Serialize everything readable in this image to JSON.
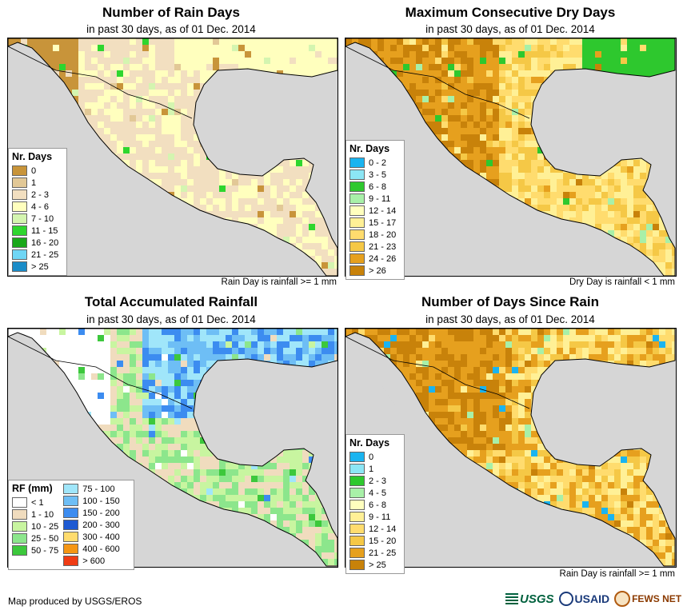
{
  "footer": {
    "credit": "Map produced by USGS/EROS"
  },
  "logos": {
    "usgs": "USGS",
    "usaid": "USAID",
    "fews": "FEWS NET"
  },
  "panels": [
    {
      "title": "Number of Rain Days",
      "subtitle": "in past 30 days, as of 01 Dec. 2014",
      "note": "Rain Day is rainfall >= 1 mm",
      "legend_title": "Nr. Days",
      "legend": [
        {
          "label": "0",
          "color": "#c8943a"
        },
        {
          "label": "1",
          "color": "#e2c896"
        },
        {
          "label": "2 - 3",
          "color": "#f2dfc0"
        },
        {
          "label": "4 - 6",
          "color": "#ffffbe"
        },
        {
          "label": "7 - 10",
          "color": "#d4f5b0"
        },
        {
          "label": "11 - 15",
          "color": "#2ed62e"
        },
        {
          "label": "16 - 20",
          "color": "#1aa81a"
        },
        {
          "label": "21 - 25",
          "color": "#6fd6f5"
        },
        {
          "label": "> 25",
          "color": "#1a8cc8"
        }
      ]
    },
    {
      "title": "Maximum Consecutive Dry Days",
      "subtitle": "in past 30 days, as of 01 Dec. 2014",
      "note": "Dry Day is rainfall < 1 mm",
      "legend_title": "Nr. Days",
      "legend": [
        {
          "label": "0 - 2",
          "color": "#1ab4f0"
        },
        {
          "label": "3 - 5",
          "color": "#8ce6f5"
        },
        {
          "label": "6 - 8",
          "color": "#2ec82e"
        },
        {
          "label": "9 - 11",
          "color": "#a8f0a8"
        },
        {
          "label": "12 - 14",
          "color": "#ffffbe"
        },
        {
          "label": "15 - 17",
          "color": "#fff096"
        },
        {
          "label": "18 - 20",
          "color": "#ffdc6e"
        },
        {
          "label": "21 - 23",
          "color": "#f5c846"
        },
        {
          "label": "24 - 26",
          "color": "#e6a01e"
        },
        {
          "label": "> 26",
          "color": "#c8820a"
        }
      ]
    },
    {
      "title": "Total Accumulated Rainfall",
      "subtitle": "in past 30 days, as of 01 Dec. 2014",
      "note": "",
      "legend_title": "RF (mm)",
      "legend": [
        {
          "label": "< 1",
          "color": "#ffffff"
        },
        {
          "label": "1 - 10",
          "color": "#f0dcbe"
        },
        {
          "label": "10 - 25",
          "color": "#c8f5a0"
        },
        {
          "label": "25 - 50",
          "color": "#8ce68c"
        },
        {
          "label": "50 - 75",
          "color": "#3cc83c"
        }
      ],
      "legend2": [
        {
          "label": "75 - 100",
          "color": "#a0e6fa"
        },
        {
          "label": "100 - 150",
          "color": "#6ebef5"
        },
        {
          "label": "150 - 200",
          "color": "#3c8cf0"
        },
        {
          "label": "200 - 300",
          "color": "#1e5ad2"
        },
        {
          "label": "300 - 400",
          "color": "#ffdc6e"
        },
        {
          "label": "400 - 600",
          "color": "#f59614"
        },
        {
          "label": "> 600",
          "color": "#f03c14"
        }
      ]
    },
    {
      "title": "Number of Days Since Rain",
      "subtitle": "in past 30 days, as of 01 Dec. 2014",
      "note": "Rain Day is rainfall >= 1 mm",
      "legend_title": "Nr. Days",
      "legend": [
        {
          "label": "0",
          "color": "#1ab4f0"
        },
        {
          "label": "1",
          "color": "#8ce6f5"
        },
        {
          "label": "2 - 3",
          "color": "#2ec82e"
        },
        {
          "label": "4 - 5",
          "color": "#a8f0a8"
        },
        {
          "label": "6 - 8",
          "color": "#ffffbe"
        },
        {
          "label": "9 - 11",
          "color": "#fff096"
        },
        {
          "label": "12 - 14",
          "color": "#ffdc6e"
        },
        {
          "label": "15 - 20",
          "color": "#f5c846"
        },
        {
          "label": "21 - 25",
          "color": "#e6a01e"
        },
        {
          "label": "> 25",
          "color": "#c8820a"
        }
      ]
    }
  ]
}
